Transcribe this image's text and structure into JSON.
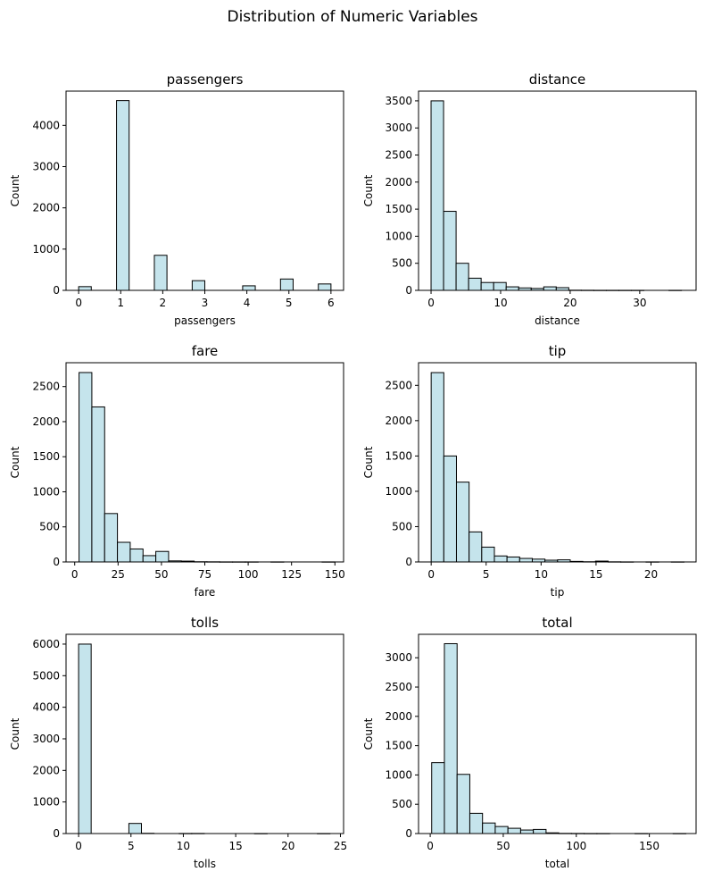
{
  "figure": {
    "title": "Distribution of Numeric Variables"
  },
  "colors": {
    "bar_fill": "#c5e4ec",
    "bar_edge": "#000000",
    "axes": "#000000",
    "background": "#ffffff"
  },
  "chart_data": [
    {
      "type": "bar",
      "title": "passengers",
      "xlabel": "passengers",
      "ylabel": "Count",
      "xlim": [
        -0.3,
        6.3
      ],
      "ylim": [
        0,
        4830
      ],
      "xticks": [
        0,
        1,
        2,
        3,
        4,
        5,
        6
      ],
      "yticks": [
        0,
        1000,
        2000,
        3000,
        4000
      ],
      "grid": false,
      "bins": [
        {
          "x0": 0.0,
          "x1": 0.3,
          "count": 90
        },
        {
          "x0": 0.9,
          "x1": 1.2,
          "count": 4600
        },
        {
          "x0": 1.8,
          "x1": 2.1,
          "count": 850
        },
        {
          "x0": 2.7,
          "x1": 3.0,
          "count": 235
        },
        {
          "x0": 3.9,
          "x1": 4.2,
          "count": 110
        },
        {
          "x0": 4.8,
          "x1": 5.1,
          "count": 275
        },
        {
          "x0": 5.7,
          "x1": 6.0,
          "count": 155
        }
      ]
    },
    {
      "type": "bar",
      "title": "distance",
      "xlabel": "distance",
      "ylabel": "Count",
      "xlim": [
        -1.8,
        38.1
      ],
      "ylim": [
        0,
        3680
      ],
      "xticks": [
        0,
        10,
        20,
        30
      ],
      "yticks": [
        0,
        500,
        1000,
        1500,
        2000,
        2500,
        3000,
        3500
      ],
      "grid": false,
      "bins": [
        {
          "x0": 0.0,
          "x1": 1.8,
          "count": 3500
        },
        {
          "x0": 1.8,
          "x1": 3.6,
          "count": 1460
        },
        {
          "x0": 3.6,
          "x1": 5.4,
          "count": 500
        },
        {
          "x0": 5.4,
          "x1": 7.2,
          "count": 225
        },
        {
          "x0": 7.2,
          "x1": 9.0,
          "count": 145
        },
        {
          "x0": 9.0,
          "x1": 10.8,
          "count": 145
        },
        {
          "x0": 10.8,
          "x1": 12.6,
          "count": 65
        },
        {
          "x0": 12.6,
          "x1": 14.4,
          "count": 45
        },
        {
          "x0": 14.4,
          "x1": 16.2,
          "count": 35
        },
        {
          "x0": 16.2,
          "x1": 18.0,
          "count": 65
        },
        {
          "x0": 18.0,
          "x1": 19.8,
          "count": 50
        },
        {
          "x0": 19.8,
          "x1": 21.6,
          "count": 3
        },
        {
          "x0": 21.6,
          "x1": 23.4,
          "count": 2
        },
        {
          "x0": 23.4,
          "x1": 25.2,
          "count": 1
        },
        {
          "x0": 25.2,
          "x1": 27.0,
          "count": 1
        },
        {
          "x0": 27.0,
          "x1": 28.8,
          "count": 1
        },
        {
          "x0": 28.8,
          "x1": 30.6,
          "count": 1
        },
        {
          "x0": 30.6,
          "x1": 32.4,
          "count": 0
        },
        {
          "x0": 32.4,
          "x1": 34.2,
          "count": 0
        },
        {
          "x0": 34.2,
          "x1": 36.0,
          "count": 1
        }
      ]
    },
    {
      "type": "bar",
      "title": "fare",
      "xlabel": "fare",
      "ylabel": "Count",
      "xlim": [
        -5.0,
        155.0
      ],
      "ylim": [
        0,
        2840
      ],
      "xticks": [
        0,
        25,
        50,
        75,
        100,
        125,
        150
      ],
      "yticks": [
        0,
        500,
        1000,
        1500,
        2000,
        2500
      ],
      "grid": false,
      "bins": [
        {
          "x0": 2.5,
          "x1": 9.875,
          "count": 2700
        },
        {
          "x0": 9.875,
          "x1": 17.25,
          "count": 2210
        },
        {
          "x0": 17.25,
          "x1": 24.625,
          "count": 690
        },
        {
          "x0": 24.625,
          "x1": 32.0,
          "count": 280
        },
        {
          "x0": 32.0,
          "x1": 39.375,
          "count": 185
        },
        {
          "x0": 39.375,
          "x1": 46.75,
          "count": 90
        },
        {
          "x0": 46.75,
          "x1": 54.125,
          "count": 150
        },
        {
          "x0": 54.125,
          "x1": 61.5,
          "count": 15
        },
        {
          "x0": 61.5,
          "x1": 68.875,
          "count": 12
        },
        {
          "x0": 68.875,
          "x1": 76.25,
          "count": 3
        },
        {
          "x0": 76.25,
          "x1": 83.625,
          "count": 2
        },
        {
          "x0": 83.625,
          "x1": 91.0,
          "count": 1
        },
        {
          "x0": 91.0,
          "x1": 98.375,
          "count": 1
        },
        {
          "x0": 98.375,
          "x1": 105.75,
          "count": 1
        },
        {
          "x0": 105.75,
          "x1": 113.125,
          "count": 0
        },
        {
          "x0": 113.125,
          "x1": 120.5,
          "count": 1
        },
        {
          "x0": 120.5,
          "x1": 127.875,
          "count": 0
        },
        {
          "x0": 127.875,
          "x1": 135.25,
          "count": 0
        },
        {
          "x0": 135.25,
          "x1": 142.625,
          "count": 0
        },
        {
          "x0": 142.625,
          "x1": 150.0,
          "count": 1
        }
      ]
    },
    {
      "type": "bar",
      "title": "tip",
      "xlabel": "tip",
      "ylabel": "Count",
      "xlim": [
        -1.15,
        24.1
      ],
      "ylim": [
        0,
        2820
      ],
      "xticks": [
        0,
        5,
        10,
        15,
        20
      ],
      "yticks": [
        0,
        500,
        1000,
        1500,
        2000,
        2500
      ],
      "grid": false,
      "bins": [
        {
          "x0": 0.0,
          "x1": 1.15,
          "count": 2680
        },
        {
          "x0": 1.15,
          "x1": 2.3,
          "count": 1500
        },
        {
          "x0": 2.3,
          "x1": 3.45,
          "count": 1130
        },
        {
          "x0": 3.45,
          "x1": 4.6,
          "count": 425
        },
        {
          "x0": 4.6,
          "x1": 5.75,
          "count": 210
        },
        {
          "x0": 5.75,
          "x1": 6.9,
          "count": 85
        },
        {
          "x0": 6.9,
          "x1": 8.05,
          "count": 70
        },
        {
          "x0": 8.05,
          "x1": 9.2,
          "count": 50
        },
        {
          "x0": 9.2,
          "x1": 10.35,
          "count": 40
        },
        {
          "x0": 10.35,
          "x1": 11.5,
          "count": 25
        },
        {
          "x0": 11.5,
          "x1": 12.65,
          "count": 30
        },
        {
          "x0": 12.65,
          "x1": 13.8,
          "count": 8
        },
        {
          "x0": 13.8,
          "x1": 14.95,
          "count": 3
        },
        {
          "x0": 14.95,
          "x1": 16.1,
          "count": 12
        },
        {
          "x0": 16.1,
          "x1": 17.25,
          "count": 2
        },
        {
          "x0": 17.25,
          "x1": 18.4,
          "count": 1
        },
        {
          "x0": 18.4,
          "x1": 19.55,
          "count": 0
        },
        {
          "x0": 19.55,
          "x1": 20.7,
          "count": 1
        },
        {
          "x0": 20.7,
          "x1": 21.85,
          "count": 0
        },
        {
          "x0": 21.85,
          "x1": 23.0,
          "count": 1
        }
      ]
    },
    {
      "type": "bar",
      "title": "tolls",
      "xlabel": "tolls",
      "ylabel": "Count",
      "xlim": [
        -1.2,
        25.3
      ],
      "ylim": [
        0,
        6310
      ],
      "xticks": [
        0,
        5,
        10,
        15,
        20,
        25
      ],
      "yticks": [
        0,
        1000,
        2000,
        3000,
        4000,
        5000,
        6000
      ],
      "grid": false,
      "bins": [
        {
          "x0": 0.0,
          "x1": 1.2,
          "count": 6000
        },
        {
          "x0": 1.2,
          "x1": 2.4,
          "count": 0
        },
        {
          "x0": 2.4,
          "x1": 3.6,
          "count": 0
        },
        {
          "x0": 3.6,
          "x1": 4.8,
          "count": 0
        },
        {
          "x0": 4.8,
          "x1": 6.0,
          "count": 320
        },
        {
          "x0": 6.0,
          "x1": 7.2,
          "count": 8
        },
        {
          "x0": 7.2,
          "x1": 8.4,
          "count": 0
        },
        {
          "x0": 8.4,
          "x1": 9.6,
          "count": 0
        },
        {
          "x0": 9.6,
          "x1": 10.8,
          "count": 3
        },
        {
          "x0": 10.8,
          "x1": 12.0,
          "count": 4
        },
        {
          "x0": 12.0,
          "x1": 13.2,
          "count": 0
        },
        {
          "x0": 13.2,
          "x1": 14.4,
          "count": 0
        },
        {
          "x0": 14.4,
          "x1": 15.6,
          "count": 0
        },
        {
          "x0": 15.6,
          "x1": 16.8,
          "count": 0
        },
        {
          "x0": 16.8,
          "x1": 18.0,
          "count": 1
        },
        {
          "x0": 18.0,
          "x1": 19.2,
          "count": 0
        },
        {
          "x0": 19.2,
          "x1": 20.4,
          "count": 0
        },
        {
          "x0": 20.4,
          "x1": 21.6,
          "count": 0
        },
        {
          "x0": 21.6,
          "x1": 22.8,
          "count": 0
        },
        {
          "x0": 22.8,
          "x1": 24.0,
          "count": 1
        }
      ]
    },
    {
      "type": "bar",
      "title": "total",
      "xlabel": "total",
      "ylabel": "Count",
      "xlim": [
        -8.0,
        182.0
      ],
      "ylim": [
        0,
        3400
      ],
      "xticks": [
        0,
        50,
        100,
        150
      ],
      "yticks": [
        0,
        500,
        1000,
        1500,
        2000,
        2500,
        3000
      ],
      "grid": false,
      "bins": [
        {
          "x0": 1.0,
          "x1": 9.7,
          "count": 1210
        },
        {
          "x0": 9.7,
          "x1": 18.4,
          "count": 3240
        },
        {
          "x0": 18.4,
          "x1": 27.1,
          "count": 1010
        },
        {
          "x0": 27.1,
          "x1": 35.8,
          "count": 345
        },
        {
          "x0": 35.8,
          "x1": 44.5,
          "count": 180
        },
        {
          "x0": 44.5,
          "x1": 53.2,
          "count": 120
        },
        {
          "x0": 53.2,
          "x1": 61.9,
          "count": 90
        },
        {
          "x0": 61.9,
          "x1": 70.6,
          "count": 60
        },
        {
          "x0": 70.6,
          "x1": 79.3,
          "count": 70
        },
        {
          "x0": 79.3,
          "x1": 88.0,
          "count": 12
        },
        {
          "x0": 88.0,
          "x1": 96.7,
          "count": 3
        },
        {
          "x0": 96.7,
          "x1": 105.4,
          "count": 2
        },
        {
          "x0": 105.4,
          "x1": 114.1,
          "count": 1
        },
        {
          "x0": 114.1,
          "x1": 122.8,
          "count": 1
        },
        {
          "x0": 122.8,
          "x1": 131.5,
          "count": 0
        },
        {
          "x0": 131.5,
          "x1": 140.2,
          "count": 0
        },
        {
          "x0": 140.2,
          "x1": 148.9,
          "count": 1
        },
        {
          "x0": 148.9,
          "x1": 157.6,
          "count": 0
        },
        {
          "x0": 157.6,
          "x1": 166.3,
          "count": 0
        },
        {
          "x0": 166.3,
          "x1": 175.0,
          "count": 1
        }
      ]
    }
  ]
}
